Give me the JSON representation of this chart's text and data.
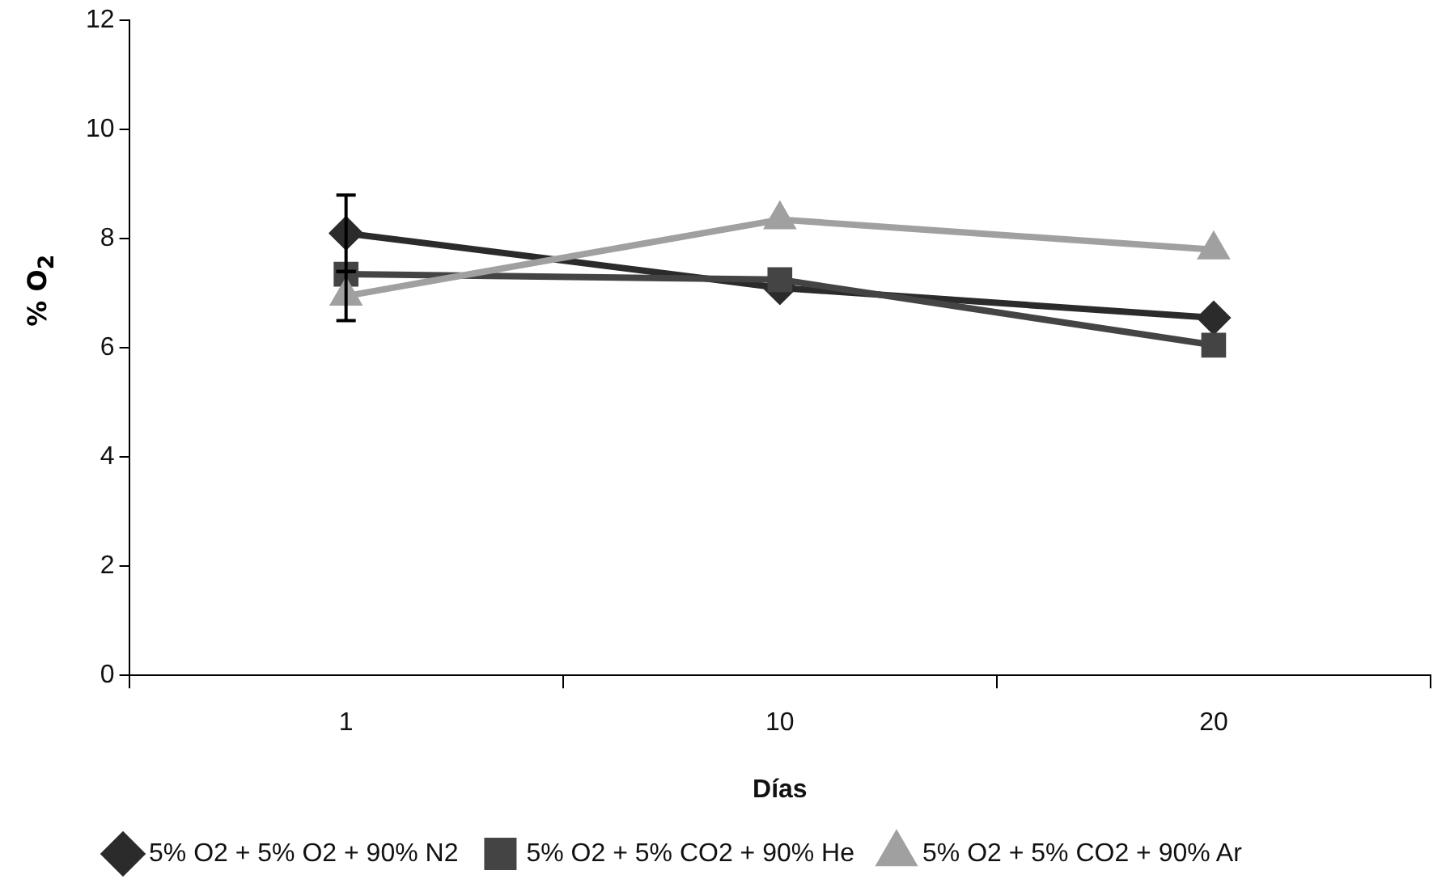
{
  "chart_data": {
    "type": "line",
    "xlabel": "Días",
    "ylabel": "% O$_{2}$",
    "categories": [
      "1",
      "10",
      "20"
    ],
    "series": [
      {
        "name": "5% O2 + 5% O2 + 90% N2",
        "color": "#2b2b2b",
        "marker": "diamond",
        "values": [
          8.1,
          7.1,
          6.55
        ],
        "errors": [
          0.7,
          null,
          null
        ]
      },
      {
        "name": "5% O2 + 5% CO2 + 90% He",
        "color": "#444444",
        "marker": "square",
        "values": [
          7.35,
          7.25,
          6.05
        ]
      },
      {
        "name": "5% O2 + 5% CO2 + 90% Ar",
        "color": "#a0a0a0",
        "marker": "triangle",
        "values": [
          6.95,
          8.35,
          7.8
        ],
        "errors": [
          0.45,
          null,
          null
        ]
      }
    ],
    "ylim": [
      0,
      12
    ],
    "yticks": [
      0,
      2,
      4,
      6,
      8,
      10,
      12
    ],
    "grid": false,
    "legend": "bottom"
  }
}
